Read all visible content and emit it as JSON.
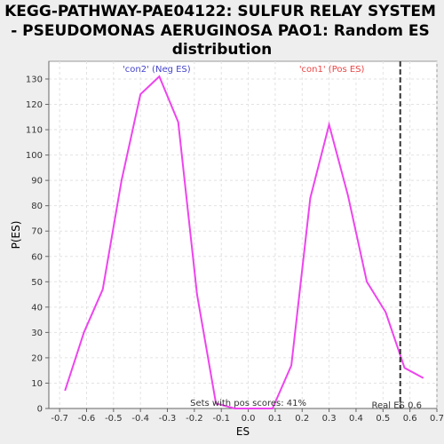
{
  "chart_data": {
    "type": "line",
    "title_lines": [
      "KEGG-PATHWAY-PAE04122: SULFUR RELAY SYSTEM",
      "- PSEUDOMONAS AERUGINOSA PAO1: Random ES",
      "distribution"
    ],
    "xlabel": "ES",
    "ylabel": "P(ES)",
    "xlim": [
      -0.74,
      0.7
    ],
    "ylim": [
      0,
      137
    ],
    "x_ticks": [
      -0.7,
      -0.6,
      -0.5,
      -0.4,
      -0.3,
      -0.2,
      -0.1,
      0.0,
      0.1,
      0.2,
      0.3,
      0.4,
      0.5,
      0.6,
      0.7
    ],
    "x_tick_labels": [
      "-0.7",
      "-0.6",
      "-0.5",
      "-0.4",
      "-0.3",
      "-0.2",
      "-0.1",
      "0.0",
      "0.1",
      "0.2",
      "0.3",
      "0.4",
      "0.5",
      "0.6",
      "0.7"
    ],
    "y_ticks": [
      0,
      10,
      20,
      30,
      40,
      50,
      60,
      70,
      80,
      90,
      100,
      110,
      120,
      130
    ],
    "y_tick_labels": [
      "0",
      "10",
      "20",
      "30",
      "40",
      "50",
      "60",
      "70",
      "80",
      "90",
      "100",
      "110",
      "120",
      "130"
    ],
    "grid": true,
    "series": [
      {
        "color": "#ee44ee",
        "x": [
          -0.68,
          -0.61,
          -0.54,
          -0.47,
          -0.4,
          -0.33,
          -0.26,
          -0.19,
          -0.12,
          -0.05,
          0.02,
          0.09,
          0.16,
          0.23,
          0.3,
          0.37,
          0.44,
          0.51,
          0.58,
          0.65
        ],
        "y": [
          7,
          30,
          47,
          90,
          124,
          131,
          113,
          45,
          2,
          0,
          0,
          0,
          17,
          83,
          112,
          84,
          50,
          38,
          16,
          12
        ]
      }
    ],
    "real_es": 0.564,
    "annotations": {
      "neg_label": "'con2' (Neg ES)",
      "neg_color": "#4444cc",
      "pos_label": "'con1' (Pos ES)",
      "pos_color": "#ee4444",
      "sets_label": "Sets with pos scores: 41%",
      "real_es_label": "Real ES 0.6"
    }
  }
}
